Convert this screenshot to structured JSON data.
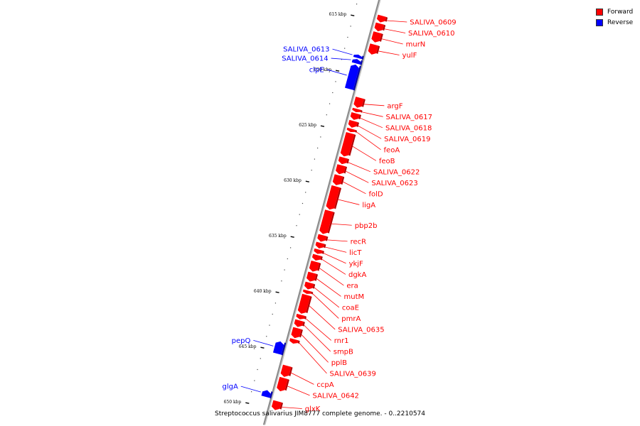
{
  "legend": {
    "forward_label": "Forward",
    "reverse_label": "Reverse",
    "forward_color": "#ff0000",
    "reverse_color": "#0000ff"
  },
  "caption": "Streptococcus salivarius JIM8777 complete genome. - 0..2210574",
  "axis": {
    "ticks": [
      {
        "kbp": 615,
        "label": "615 kbp"
      },
      {
        "kbp": 620,
        "label": "620 kbp"
      },
      {
        "kbp": 625,
        "label": "625 kbp"
      },
      {
        "kbp": 630,
        "label": "630 kbp"
      },
      {
        "kbp": 635,
        "label": "635 kbp"
      },
      {
        "kbp": 640,
        "label": "640 kbp"
      },
      {
        "kbp": 645,
        "label": "645 kbp"
      },
      {
        "kbp": 650,
        "label": "650 kbp"
      }
    ]
  },
  "genes": [
    {
      "name": "SALIVA_0609",
      "strand": "forward",
      "start": 614.9,
      "end": 615.5
    },
    {
      "name": "SALIVA_0610",
      "strand": "forward",
      "start": 615.6,
      "end": 616.3
    },
    {
      "name": "murN",
      "strand": "forward",
      "start": 616.4,
      "end": 617.3
    },
    {
      "name": "yulF",
      "strand": "forward",
      "start": 617.5,
      "end": 618.4
    },
    {
      "name": "SALIVA_0613",
      "strand": "reverse",
      "start": 618.7,
      "end": 619.0
    },
    {
      "name": "SALIVA_0614",
      "strand": "reverse",
      "start": 619.1,
      "end": 619.5
    },
    {
      "name": "clpE",
      "strand": "reverse",
      "start": 619.6,
      "end": 621.8
    },
    {
      "name": "argF",
      "strand": "forward",
      "start": 622.3,
      "end": 623.2
    },
    {
      "name": "SALIVA_0617",
      "strand": "forward",
      "start": 623.3,
      "end": 623.6
    },
    {
      "name": "SALIVA_0618",
      "strand": "forward",
      "start": 623.7,
      "end": 624.3
    },
    {
      "name": "SALIVA_0619",
      "strand": "forward",
      "start": 624.4,
      "end": 625.0
    },
    {
      "name": "feoA",
      "strand": "forward",
      "start": 625.1,
      "end": 625.4
    },
    {
      "name": "feoB",
      "strand": "forward",
      "start": 625.5,
      "end": 627.6
    },
    {
      "name": "SALIVA_0622",
      "strand": "forward",
      "start": 627.7,
      "end": 628.3
    },
    {
      "name": "SALIVA_0623",
      "strand": "forward",
      "start": 628.4,
      "end": 629.2
    },
    {
      "name": "folD",
      "strand": "forward",
      "start": 629.3,
      "end": 630.2
    },
    {
      "name": "ligA",
      "strand": "forward",
      "start": 630.3,
      "end": 632.4
    },
    {
      "name": "pbp2b",
      "strand": "forward",
      "start": 632.5,
      "end": 634.6
    },
    {
      "name": "recR",
      "strand": "forward",
      "start": 634.7,
      "end": 635.3
    },
    {
      "name": "licT",
      "strand": "forward",
      "start": 635.4,
      "end": 635.9
    },
    {
      "name": "ykjF",
      "strand": "forward",
      "start": 636.0,
      "end": 636.4
    },
    {
      "name": "dgkA",
      "strand": "forward",
      "start": 636.5,
      "end": 637.0
    },
    {
      "name": "era",
      "strand": "forward",
      "start": 637.1,
      "end": 638.0
    },
    {
      "name": "mutM",
      "strand": "forward",
      "start": 638.1,
      "end": 638.9
    },
    {
      "name": "coaE",
      "strand": "forward",
      "start": 639.0,
      "end": 639.6
    },
    {
      "name": "pmrA",
      "strand": "forward",
      "start": 639.7,
      "end": 640.0
    },
    {
      "name": "SALIVA_0635",
      "strand": "forward",
      "start": 640.1,
      "end": 641.8
    },
    {
      "name": "rnr1",
      "strand": "forward",
      "start": 641.9,
      "end": 642.3
    },
    {
      "name": "smpB",
      "strand": "forward",
      "start": 642.4,
      "end": 643.0
    },
    {
      "name": "pplB",
      "strand": "forward",
      "start": 643.1,
      "end": 644.0
    },
    {
      "name": "SALIVA_0639",
      "strand": "forward",
      "start": 644.1,
      "end": 644.5
    },
    {
      "name": "pepQ",
      "strand": "reverse",
      "start": 644.6,
      "end": 645.7
    },
    {
      "name": "ccpA",
      "strand": "forward",
      "start": 646.5,
      "end": 647.5
    },
    {
      "name": "SALIVA_0642",
      "strand": "forward",
      "start": 647.6,
      "end": 648.8
    },
    {
      "name": "glgA",
      "strand": "reverse",
      "start": 649.0,
      "end": 649.6
    },
    {
      "name": "glxK",
      "strand": "forward",
      "start": 649.7,
      "end": 650.5
    }
  ]
}
